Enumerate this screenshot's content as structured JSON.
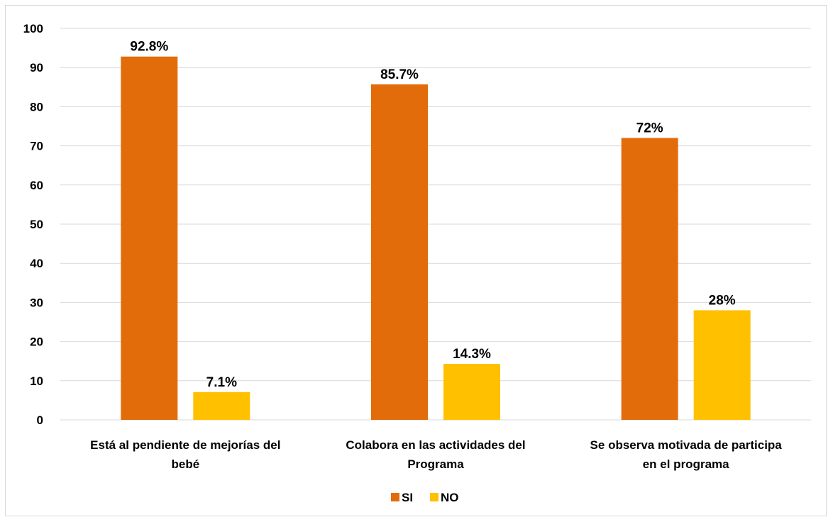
{
  "chart_data": {
    "type": "bar",
    "categories": [
      [
        "Está al pendiente de mejorías del",
        "bebé"
      ],
      [
        "Colabora en las actividades del",
        "Programa"
      ],
      [
        "Se observa motivada de participa",
        "en el programa"
      ]
    ],
    "series": [
      {
        "name": "SI",
        "color": "#E36C0A",
        "values": [
          92.8,
          85.7,
          72
        ],
        "labels": [
          "92.8%",
          "85.7%",
          "72%"
        ]
      },
      {
        "name": "NO",
        "color": "#FFC000",
        "values": [
          7.1,
          14.3,
          28
        ],
        "labels": [
          "7.1%",
          "14.3%",
          "28%"
        ]
      }
    ],
    "ylim": [
      0,
      100
    ],
    "yticks": [
      0,
      10,
      20,
      30,
      40,
      50,
      60,
      70,
      80,
      90,
      100
    ],
    "grid": true,
    "legend_position": "bottom",
    "gridline_color": "#d9d9d9"
  }
}
